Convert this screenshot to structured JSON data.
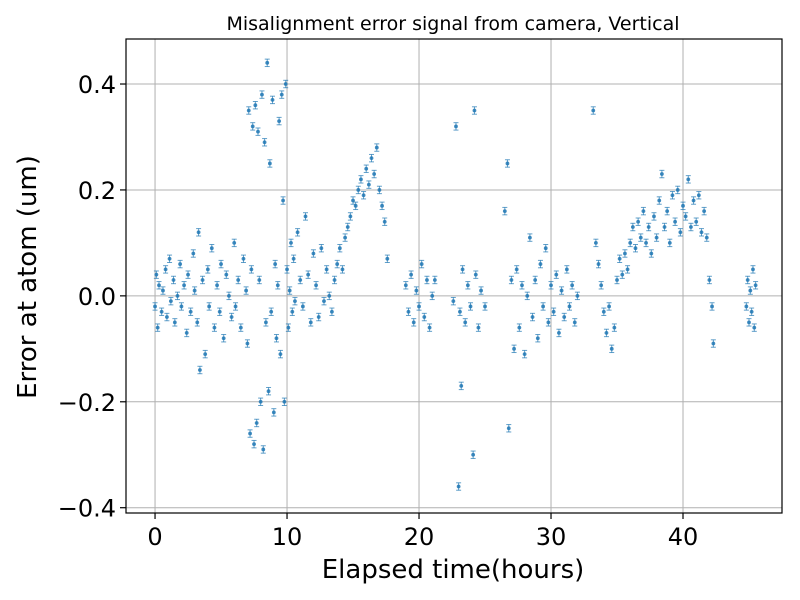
{
  "chart_data": {
    "type": "scatter",
    "title": "Misalignment error signal from camera, Vertical",
    "xlabel": "Elapsed time(hours)",
    "ylabel": "Error at atom (um)",
    "xlim": [
      -2.2,
      47.5
    ],
    "ylim": [
      -0.41,
      0.485
    ],
    "xticks": [
      0,
      10,
      20,
      30,
      40
    ],
    "xtick_labels": [
      "0",
      "10",
      "20",
      "30",
      "40"
    ],
    "yticks": [
      -0.4,
      -0.2,
      0.0,
      0.2,
      0.4
    ],
    "ytick_labels": [
      "−0.4",
      "−0.2",
      "0.0",
      "0.2",
      "0.4"
    ],
    "grid": true,
    "error_bar": 0.007,
    "color": "#1f77b4",
    "series": [
      {
        "values": [
          [
            0.0,
            -0.02
          ],
          [
            0.1,
            0.04
          ],
          [
            0.2,
            -0.06
          ],
          [
            0.3,
            0.02
          ],
          [
            0.5,
            -0.03
          ],
          [
            0.6,
            0.01
          ],
          [
            0.8,
            0.05
          ],
          [
            0.9,
            -0.04
          ],
          [
            1.1,
            0.07
          ],
          [
            1.2,
            -0.01
          ],
          [
            1.4,
            0.03
          ],
          [
            1.5,
            -0.05
          ],
          [
            1.7,
            0.0
          ],
          [
            1.9,
            0.06
          ],
          [
            2.0,
            -0.02
          ],
          [
            2.2,
            0.02
          ],
          [
            2.4,
            -0.07
          ],
          [
            2.5,
            0.04
          ],
          [
            2.7,
            -0.03
          ],
          [
            2.9,
            0.08
          ],
          [
            3.0,
            0.01
          ],
          [
            3.2,
            -0.05
          ],
          [
            3.3,
            0.12
          ],
          [
            3.4,
            -0.14
          ],
          [
            3.6,
            0.03
          ],
          [
            3.8,
            -0.11
          ],
          [
            4.0,
            0.05
          ],
          [
            4.1,
            -0.02
          ],
          [
            4.3,
            0.09
          ],
          [
            4.5,
            -0.06
          ],
          [
            4.7,
            0.02
          ],
          [
            4.9,
            -0.03
          ],
          [
            5.0,
            0.06
          ],
          [
            5.2,
            -0.08
          ],
          [
            5.4,
            0.04
          ],
          [
            5.6,
            0.0
          ],
          [
            5.8,
            -0.04
          ],
          [
            6.0,
            0.1
          ],
          [
            6.1,
            -0.02
          ],
          [
            6.3,
            0.03
          ],
          [
            6.5,
            -0.06
          ],
          [
            6.7,
            0.07
          ],
          [
            6.9,
            0.01
          ],
          [
            7.0,
            -0.09
          ],
          [
            7.1,
            0.35
          ],
          [
            7.2,
            -0.26
          ],
          [
            7.3,
            0.05
          ],
          [
            7.4,
            0.32
          ],
          [
            7.5,
            -0.28
          ],
          [
            7.6,
            0.36
          ],
          [
            7.7,
            -0.24
          ],
          [
            7.8,
            0.31
          ],
          [
            7.9,
            0.03
          ],
          [
            8.0,
            -0.2
          ],
          [
            8.1,
            0.38
          ],
          [
            8.2,
            -0.29
          ],
          [
            8.3,
            0.29
          ],
          [
            8.4,
            -0.05
          ],
          [
            8.5,
            0.44
          ],
          [
            8.6,
            -0.18
          ],
          [
            8.7,
            0.25
          ],
          [
            8.8,
            -0.03
          ],
          [
            8.9,
            0.37
          ],
          [
            9.0,
            -0.22
          ],
          [
            9.1,
            0.06
          ],
          [
            9.2,
            -0.08
          ],
          [
            9.3,
            0.02
          ],
          [
            9.4,
            0.33
          ],
          [
            9.5,
            -0.11
          ],
          [
            9.6,
            0.38
          ],
          [
            9.7,
            0.18
          ],
          [
            9.8,
            -0.2
          ],
          [
            9.9,
            0.4
          ],
          [
            10.0,
            0.05
          ],
          [
            10.1,
            -0.06
          ],
          [
            10.2,
            0.01
          ],
          [
            10.3,
            0.1
          ],
          [
            10.4,
            -0.03
          ],
          [
            10.5,
            0.07
          ],
          [
            10.6,
            -0.01
          ],
          [
            10.8,
            0.12
          ],
          [
            11.0,
            0.03
          ],
          [
            11.2,
            -0.02
          ],
          [
            11.4,
            0.15
          ],
          [
            11.6,
            0.04
          ],
          [
            11.8,
            -0.05
          ],
          [
            12.0,
            0.08
          ],
          [
            12.2,
            0.02
          ],
          [
            12.4,
            -0.04
          ],
          [
            12.6,
            0.09
          ],
          [
            12.8,
            -0.01
          ],
          [
            13.0,
            0.05
          ],
          [
            13.2,
            0.0
          ],
          [
            13.4,
            -0.03
          ],
          [
            13.6,
            0.03
          ],
          [
            13.8,
            0.06
          ],
          [
            14.0,
            0.09
          ],
          [
            14.2,
            0.05
          ],
          [
            14.4,
            0.11
          ],
          [
            14.6,
            0.13
          ],
          [
            14.8,
            0.15
          ],
          [
            15.0,
            0.18
          ],
          [
            15.2,
            0.17
          ],
          [
            15.4,
            0.2
          ],
          [
            15.6,
            0.22
          ],
          [
            15.8,
            0.19
          ],
          [
            16.0,
            0.24
          ],
          [
            16.2,
            0.21
          ],
          [
            16.4,
            0.26
          ],
          [
            16.6,
            0.23
          ],
          [
            16.8,
            0.28
          ],
          [
            17.0,
            0.2
          ],
          [
            17.2,
            0.17
          ],
          [
            17.4,
            0.14
          ],
          [
            17.6,
            0.07
          ],
          [
            19.0,
            0.02
          ],
          [
            19.2,
            -0.03
          ],
          [
            19.4,
            0.04
          ],
          [
            19.6,
            -0.05
          ],
          [
            19.8,
            0.01
          ],
          [
            20.0,
            -0.02
          ],
          [
            20.2,
            0.06
          ],
          [
            20.4,
            -0.04
          ],
          [
            20.6,
            0.03
          ],
          [
            20.8,
            -0.06
          ],
          [
            21.0,
            0.0
          ],
          [
            21.2,
            0.03
          ],
          [
            22.6,
            -0.01
          ],
          [
            22.8,
            0.32
          ],
          [
            23.0,
            -0.36
          ],
          [
            23.1,
            -0.03
          ],
          [
            23.2,
            -0.17
          ],
          [
            23.3,
            0.05
          ],
          [
            23.5,
            -0.05
          ],
          [
            23.7,
            0.02
          ],
          [
            23.9,
            -0.02
          ],
          [
            24.1,
            -0.3
          ],
          [
            24.2,
            0.35
          ],
          [
            24.3,
            0.04
          ],
          [
            24.5,
            -0.06
          ],
          [
            24.7,
            0.01
          ],
          [
            25.0,
            -0.02
          ],
          [
            26.5,
            0.16
          ],
          [
            26.7,
            0.25
          ],
          [
            26.8,
            -0.25
          ],
          [
            27.0,
            0.03
          ],
          [
            27.2,
            -0.1
          ],
          [
            27.4,
            0.05
          ],
          [
            27.6,
            -0.06
          ],
          [
            27.8,
            0.02
          ],
          [
            28.0,
            -0.11
          ],
          [
            28.2,
            0.0
          ],
          [
            28.4,
            0.11
          ],
          [
            28.6,
            -0.04
          ],
          [
            28.8,
            0.03
          ],
          [
            29.0,
            -0.08
          ],
          [
            29.2,
            0.06
          ],
          [
            29.4,
            -0.02
          ],
          [
            29.6,
            0.09
          ],
          [
            29.8,
            -0.05
          ],
          [
            30.0,
            0.02
          ],
          [
            30.2,
            -0.03
          ],
          [
            30.4,
            0.04
          ],
          [
            30.6,
            -0.07
          ],
          [
            30.8,
            0.01
          ],
          [
            31.0,
            -0.04
          ],
          [
            31.2,
            0.05
          ],
          [
            31.4,
            -0.02
          ],
          [
            31.6,
            0.02
          ],
          [
            31.8,
            -0.05
          ],
          [
            32.0,
            0.0
          ],
          [
            33.2,
            0.35
          ],
          [
            33.4,
            0.1
          ],
          [
            33.6,
            0.06
          ],
          [
            33.8,
            0.02
          ],
          [
            34.0,
            -0.03
          ],
          [
            34.2,
            -0.07
          ],
          [
            34.4,
            -0.02
          ],
          [
            34.6,
            -0.1
          ],
          [
            34.8,
            -0.06
          ],
          [
            35.0,
            0.03
          ],
          [
            35.2,
            0.07
          ],
          [
            35.4,
            0.04
          ],
          [
            35.6,
            0.08
          ],
          [
            35.8,
            0.05
          ],
          [
            36.0,
            0.1
          ],
          [
            36.2,
            0.13
          ],
          [
            36.4,
            0.09
          ],
          [
            36.6,
            0.14
          ],
          [
            36.8,
            0.11
          ],
          [
            37.0,
            0.16
          ],
          [
            37.2,
            0.1
          ],
          [
            37.4,
            0.13
          ],
          [
            37.6,
            0.08
          ],
          [
            37.8,
            0.15
          ],
          [
            38.0,
            0.11
          ],
          [
            38.2,
            0.18
          ],
          [
            38.4,
            0.23
          ],
          [
            38.6,
            0.13
          ],
          [
            38.8,
            0.16
          ],
          [
            39.0,
            0.1
          ],
          [
            39.2,
            0.19
          ],
          [
            39.4,
            0.14
          ],
          [
            39.6,
            0.2
          ],
          [
            39.8,
            0.12
          ],
          [
            40.0,
            0.17
          ],
          [
            40.2,
            0.15
          ],
          [
            40.4,
            0.22
          ],
          [
            40.6,
            0.13
          ],
          [
            40.8,
            0.18
          ],
          [
            41.0,
            0.14
          ],
          [
            41.2,
            0.19
          ],
          [
            41.4,
            0.12
          ],
          [
            41.6,
            0.16
          ],
          [
            41.8,
            0.11
          ],
          [
            42.0,
            0.03
          ],
          [
            42.2,
            -0.02
          ],
          [
            42.3,
            -0.09
          ],
          [
            44.8,
            -0.02
          ],
          [
            44.9,
            0.03
          ],
          [
            45.0,
            -0.05
          ],
          [
            45.1,
            0.01
          ],
          [
            45.2,
            -0.03
          ],
          [
            45.3,
            0.05
          ],
          [
            45.4,
            -0.06
          ],
          [
            45.5,
            0.02
          ]
        ]
      }
    ]
  }
}
